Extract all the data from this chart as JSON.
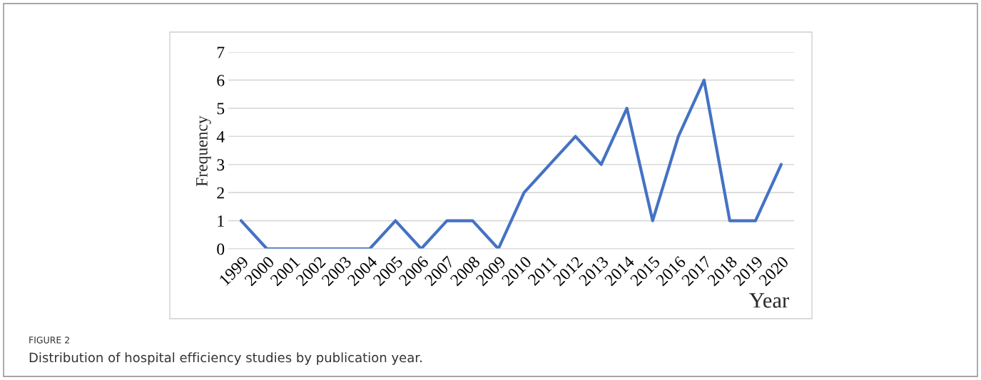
{
  "chart_data": {
    "type": "line",
    "categories": [
      "1999",
      "2000",
      "2001",
      "2002",
      "2003",
      "2004",
      "2005",
      "2006",
      "2007",
      "2008",
      "2009",
      "2010",
      "2011",
      "2012",
      "2013",
      "2014",
      "2015",
      "2016",
      "2017",
      "2018",
      "2019",
      "2020"
    ],
    "series": [
      {
        "color": "#4472c4",
        "values": [
          1,
          0,
          0,
          0,
          0,
          0,
          1,
          0,
          1,
          1,
          0,
          2,
          3,
          4,
          3,
          5,
          1,
          4,
          6,
          1,
          1,
          3
        ]
      }
    ],
    "ylim": [
      0,
      7
    ],
    "yticks": [
      0,
      1,
      2,
      3,
      4,
      5,
      6,
      7
    ],
    "grid": "y",
    "marker": "none",
    "line_style": "solid",
    "xlabel": "Year",
    "ylabel": "Frequency",
    "annotations": [
      "FIGURE 2",
      "Distribution of hospital efficiency studies by publication year."
    ]
  }
}
